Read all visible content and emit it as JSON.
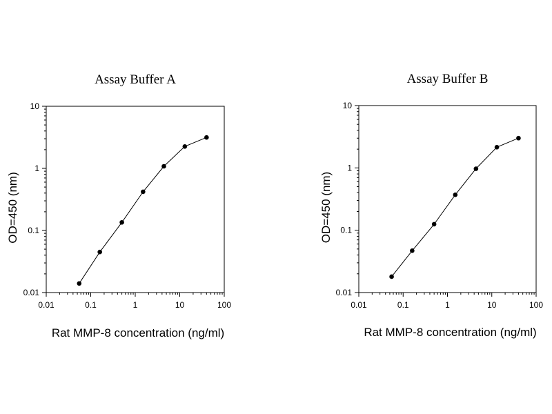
{
  "chart_data": [
    {
      "type": "line",
      "title": "Assay Buffer A",
      "xlabel": "Rat MMP-8 concentration (ng/ml)",
      "ylabel": "OD=450 (nm)",
      "x_scale": "log",
      "y_scale": "log",
      "xlim": [
        0.01,
        100
      ],
      "ylim": [
        0.01,
        10
      ],
      "x_ticks": [
        "0.01",
        "0.1",
        "1",
        "10",
        "100"
      ],
      "y_ticks": [
        "0.01",
        "0.1",
        "1",
        "10"
      ],
      "grid": false,
      "series": [
        {
          "x": [
            0.055,
            0.16,
            0.5,
            1.5,
            4.4,
            13,
            40
          ],
          "y": [
            0.014,
            0.045,
            0.135,
            0.42,
            1.08,
            2.25,
            3.15
          ]
        }
      ]
    },
    {
      "type": "line",
      "title": "Assay Buffer B",
      "xlabel": "Rat MMP-8 concentration (ng/ml)",
      "ylabel": "OD=450 (nm)",
      "x_scale": "log",
      "y_scale": "log",
      "xlim": [
        0.01,
        100
      ],
      "ylim": [
        0.01,
        10
      ],
      "x_ticks": [
        "0.01",
        "0.1",
        "1",
        "10",
        "100"
      ],
      "y_ticks": [
        "0.01",
        "0.1",
        "1",
        "10"
      ],
      "grid": false,
      "series": [
        {
          "x": [
            0.055,
            0.16,
            0.5,
            1.5,
            4.4,
            13,
            40
          ],
          "y": [
            0.018,
            0.047,
            0.125,
            0.37,
            0.97,
            2.15,
            3.0
          ]
        }
      ]
    }
  ]
}
